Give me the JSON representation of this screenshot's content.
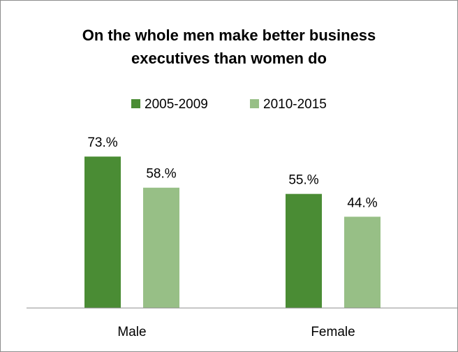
{
  "chart_data": {
    "type": "bar",
    "title_lines": [
      "On the whole men make better business",
      "executives than women do"
    ],
    "categories": [
      "Male",
      "Female"
    ],
    "series": [
      {
        "name": "2005-2009",
        "values": [
          73,
          55
        ],
        "labels": [
          "73.%",
          "55.%"
        ],
        "color": "#4a8c34"
      },
      {
        "name": "2010-2015",
        "values": [
          58,
          44
        ],
        "labels": [
          "58.%",
          "44.%"
        ],
        "color": "#97bf86"
      }
    ],
    "ylim": [
      0,
      100
    ],
    "legend_position": "top",
    "grid": false,
    "axis_color": "#8c8c8c"
  }
}
